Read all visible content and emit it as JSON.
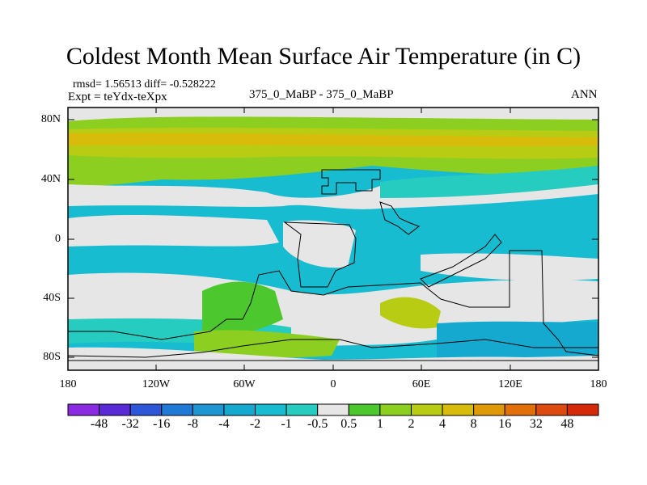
{
  "title": "Coldest Month Mean Surface Air Temperature (in C)",
  "stats": "rmsd= 1.56513 diff= -0.528222",
  "expt": "Expt = teYdx-teXpx",
  "comparison": "375_0_MaBP - 375_0_MaBP",
  "season": "ANN",
  "y_axis": [
    "80N",
    "40N",
    "0",
    "40S",
    "80S"
  ],
  "x_axis": [
    "180",
    "120W",
    "60W",
    "0",
    "60E",
    "120E",
    "180"
  ],
  "colorbar": {
    "labels": [
      "-48",
      "-32",
      "-16",
      "-8",
      "-4",
      "-2",
      "-1",
      "-0.5",
      "0.5",
      "1",
      "2",
      "4",
      "8",
      "16",
      "32",
      "48"
    ],
    "colors": [
      "#8a2be2",
      "#5a2ad6",
      "#2e56d8",
      "#1f7ad6",
      "#1e96d2",
      "#16a9cf",
      "#17bcd0",
      "#26ccc0",
      "#e6e6e6",
      "#4cc82e",
      "#8ccf20",
      "#b8cc14",
      "#d8bc0c",
      "#e09a08",
      "#e2700a",
      "#dc4a10",
      "#d42a0a"
    ]
  },
  "field_colors": {
    "neutral": "#e6e6e6",
    "cool": "#26ccc0",
    "cool2": "#17bcd0",
    "cool3": "#16a9cf",
    "warm1": "#4cc82e",
    "warm2": "#8ccf20",
    "warm3": "#b8cc14",
    "warm4": "#d8bc0c"
  }
}
